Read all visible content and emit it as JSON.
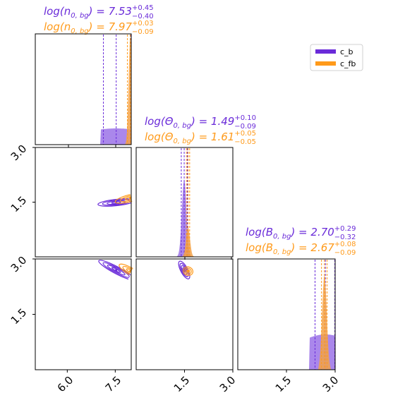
{
  "colors": {
    "c_b": "#6a2bd9",
    "c_fb": "#ff9a1a",
    "c_b_fill": "#9b72e8",
    "c_fb_fill": "#f2a24a"
  },
  "legend": {
    "placement": "top-right",
    "items": [
      {
        "label": "c_b",
        "color": "#6a2bd9"
      },
      {
        "label": "c_fb",
        "color": "#ff9a1a"
      }
    ]
  },
  "titles": [
    {
      "color": "#6a2bd9",
      "main": "log(n",
      "sub": "0, bg",
      "mid": ") = 7.53",
      "up": "+0.45",
      "down": "−0.40"
    },
    {
      "color": "#ff9a1a",
      "main": "log(n",
      "sub": "0, bg",
      "mid": ") = 7.97",
      "up": "+0.03",
      "down": "−0.09"
    },
    {
      "color": "#6a2bd9",
      "main": "log(Θ",
      "sub": "0, bg",
      "mid": ") = 1.49",
      "up": "+0.10",
      "down": "−0.09"
    },
    {
      "color": "#ff9a1a",
      "main": "log(Θ",
      "sub": "0, bg",
      "mid": ") = 1.61",
      "up": "+0.05",
      "down": "−0.05"
    },
    {
      "color": "#6a2bd9",
      "main": "log(B",
      "sub": "0, bg",
      "mid": ") = 2.70",
      "up": "+0.29",
      "down": "−0.32"
    },
    {
      "color": "#ff9a1a",
      "main": "log(B",
      "sub": "0, bg",
      "mid": ") = 2.67",
      "up": "+0.08",
      "down": "−0.09"
    }
  ],
  "ticks": {
    "x_col0": [
      "6.0",
      "7.5"
    ],
    "x_col1": [
      "1.5",
      "3.0"
    ],
    "x_col2": [
      "1.5",
      "3.0"
    ],
    "y_row1": [
      "3.0",
      "1.5"
    ],
    "y_row2": [
      "3.0",
      "1.5"
    ]
  },
  "chart_data": {
    "type": "corner",
    "parameters": [
      "log(n_0,bg)",
      "log(Θ_0,bg)",
      "log(B_0,bg)"
    ],
    "ranges": {
      "n": [
        5.0,
        8.0
      ],
      "theta": [
        0.0,
        3.0
      ],
      "B": [
        0.0,
        3.0
      ]
    },
    "series": [
      {
        "name": "c_b",
        "n": {
          "median": 7.53,
          "lo": 7.13,
          "hi": 7.98
        },
        "theta": {
          "median": 1.49,
          "lo": 1.4,
          "hi": 1.59
        },
        "B": {
          "median": 2.7,
          "lo": 2.38,
          "hi": 2.99
        }
      },
      {
        "name": "c_fb",
        "n": {
          "median": 7.97,
          "lo": 7.88,
          "hi": 8.0
        },
        "theta": {
          "median": 1.61,
          "lo": 1.56,
          "hi": 1.66
        },
        "B": {
          "median": 2.67,
          "lo": 2.58,
          "hi": 2.75
        }
      }
    ]
  }
}
